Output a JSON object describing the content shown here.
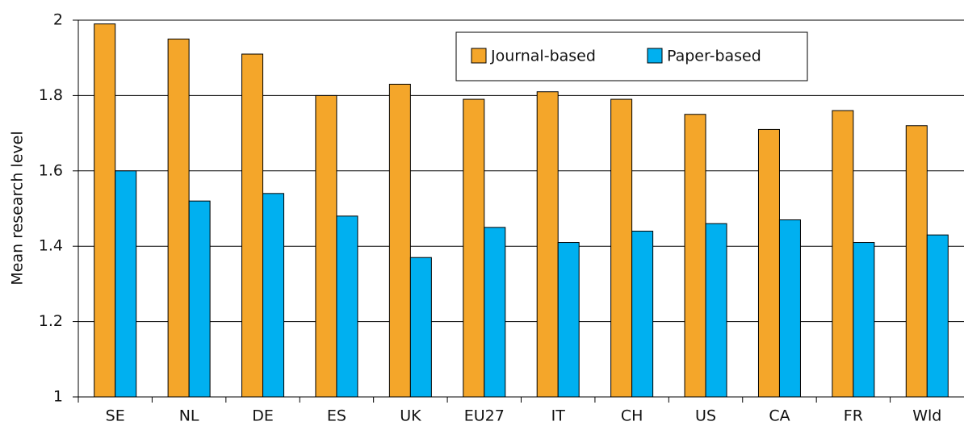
{
  "chart_data": {
    "type": "bar",
    "y_label": "Mean research level",
    "categories": [
      "SE",
      "NL",
      "DE",
      "ES",
      "UK",
      "EU27",
      "IT",
      "CH",
      "US",
      "CA",
      "FR",
      "Wld"
    ],
    "series": [
      {
        "name": "Journal-based",
        "color": "#f4a62a",
        "values": [
          1.99,
          1.95,
          1.91,
          1.8,
          1.83,
          1.79,
          1.81,
          1.79,
          1.75,
          1.71,
          1.76,
          1.72
        ]
      },
      {
        "name": "Paper-based",
        "color": "#00b0f0",
        "values": [
          1.6,
          1.52,
          1.54,
          1.48,
          1.37,
          1.45,
          1.41,
          1.44,
          1.46,
          1.47,
          1.41,
          1.43
        ]
      }
    ],
    "ylim": [
      1,
      2
    ],
    "yticks": [
      1,
      1.2,
      1.4,
      1.6,
      1.8,
      2
    ],
    "grid": true
  }
}
